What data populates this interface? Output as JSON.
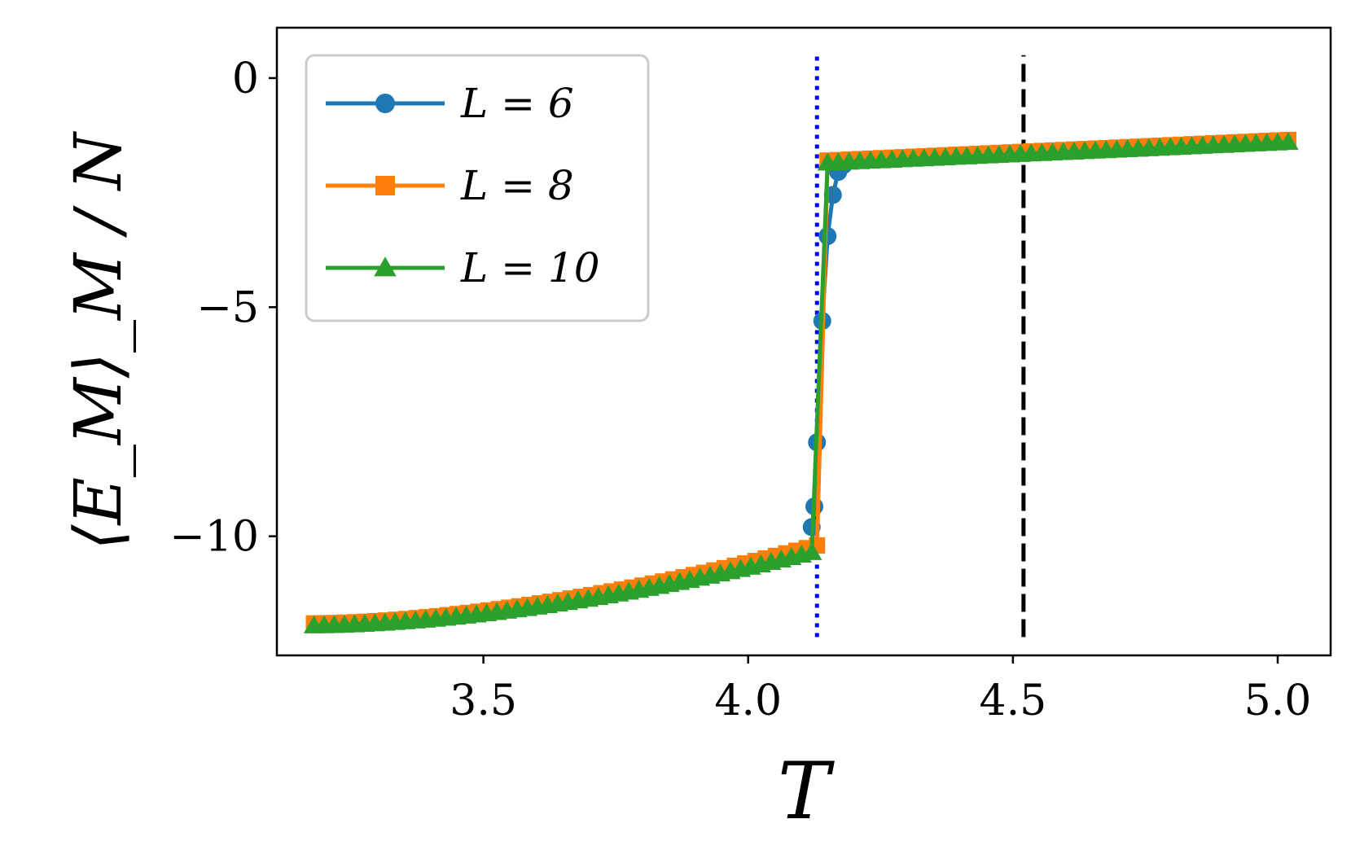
{
  "chart_data": {
    "type": "line",
    "title": "",
    "xlabel": "T",
    "ylabel": "⟨E_M⟩_M / N",
    "xlim": [
      3.11,
      5.1
    ],
    "ylim": [
      -12.6,
      1.1
    ],
    "xticks": [
      3.5,
      4.0,
      4.5,
      5.0
    ],
    "xtick_labels": [
      "3.5",
      "4.0",
      "4.5",
      "5.0"
    ],
    "yticks": [
      0,
      -5,
      -10
    ],
    "ytick_labels": [
      "0",
      "−5",
      "−10"
    ],
    "grid": false,
    "legend_position": "top-left",
    "vlines": [
      {
        "x": 4.13,
        "style": "dotted",
        "color": "#0000ff",
        "y_range": [
          -12.2,
          0.5
        ]
      },
      {
        "x": 4.52,
        "style": "dashed",
        "color": "#000000",
        "y_range": [
          -12.2,
          0.5
        ]
      }
    ],
    "series": [
      {
        "name": "L = 6",
        "legend_label": "L = 6",
        "color": "#1f77b4",
        "marker": "circle",
        "x": [
          4.12,
          4.125,
          4.13,
          4.14,
          4.15,
          4.16,
          4.17,
          4.18
        ],
        "y": [
          -9.8,
          -9.35,
          -7.95,
          -5.3,
          -3.45,
          -2.55,
          -2.05,
          -1.9
        ]
      },
      {
        "name": "L = 8",
        "legend_label": "L = 8",
        "color": "#ff7f0e",
        "marker": "square",
        "low_branch": {
          "x_start": 3.18,
          "x_end": 4.13,
          "y_start": -11.9,
          "y_end": -10.2
        },
        "high_branch": {
          "x_start": 4.15,
          "x_end": 5.02,
          "y_start": -1.8,
          "y_end": -1.35
        },
        "points_per_branch": [
          50,
          44
        ]
      },
      {
        "name": "L = 10",
        "legend_label": "L = 10",
        "color": "#2ca02c",
        "marker": "triangle",
        "low_branch": {
          "x_start": 3.18,
          "x_end": 4.12,
          "y_start": -11.95,
          "y_end": -10.35
        },
        "high_branch": {
          "x_start": 4.15,
          "x_end": 5.02,
          "y_start": -1.85,
          "y_end": -1.4
        },
        "points_per_branch": [
          50,
          44
        ]
      }
    ]
  }
}
